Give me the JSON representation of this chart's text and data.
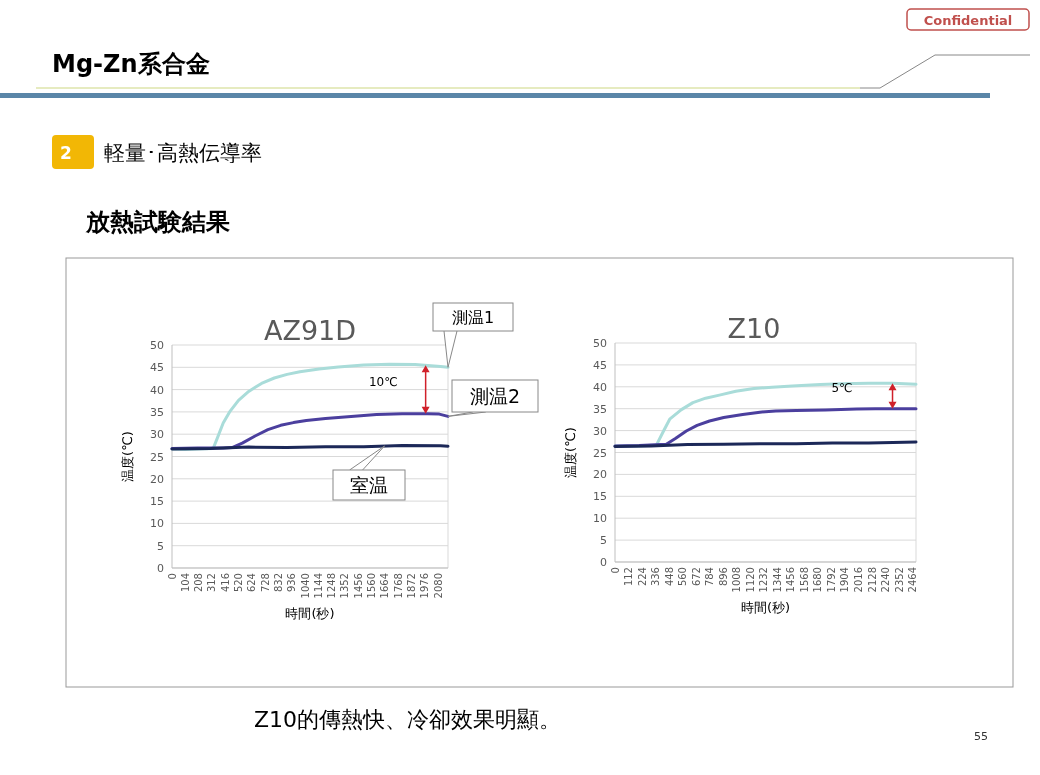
{
  "chart_data": [
    {
      "type": "line",
      "title": "AZ91D",
      "xlabel": "時間(秒)",
      "ylabel": "温度(℃)",
      "xlim": [
        0,
        2158
      ],
      "xticks": [
        0,
        104,
        208,
        312,
        416,
        520,
        624,
        728,
        832,
        936,
        1040,
        1144,
        1248,
        1352,
        1456,
        1560,
        1664,
        1768,
        1872,
        1976,
        2080
      ],
      "ylim": [
        0,
        50
      ],
      "yticks": [
        0,
        5,
        10,
        15,
        20,
        25,
        30,
        35,
        40,
        45,
        50
      ],
      "grid": "y",
      "annotations": [
        "Confidential",
        "Mg-Zn系合金",
        "2",
        "軽量･高熱伝導率",
        "放熱試験結果",
        "10℃"
      ],
      "series": [
        {
          "name": "測温1",
          "color": "#a9dcd9",
          "x": [
            0,
            104,
            208,
            322,
            360,
            400,
            450,
            520,
            600,
            700,
            800,
            900,
            1000,
            1150,
            1300,
            1500,
            1700,
            1900,
            2000,
            2100,
            2158
          ],
          "values": [
            26.7,
            26.6,
            26.7,
            26.8,
            29.5,
            32.5,
            35,
            37.6,
            39.6,
            41.4,
            42.6,
            43.4,
            44,
            44.6,
            45.1,
            45.5,
            45.7,
            45.6,
            45.4,
            45.2,
            45
          ]
        },
        {
          "name": "測温2",
          "color": "#4b3f9e",
          "x": [
            0,
            200,
            400,
            470,
            550,
            650,
            750,
            850,
            950,
            1050,
            1200,
            1400,
            1600,
            1800,
            2000,
            2090,
            2158
          ],
          "values": [
            26.8,
            26.9,
            26.9,
            27,
            28,
            29.6,
            31,
            32,
            32.6,
            33.1,
            33.5,
            34,
            34.4,
            34.6,
            34.6,
            34.5,
            34
          ]
        },
        {
          "name": "室温",
          "color": "#1c2858",
          "x": [
            0,
            300,
            600,
            900,
            1200,
            1500,
            1800,
            2100,
            2158
          ],
          "values": [
            26.7,
            26.8,
            27.1,
            27,
            27.2,
            27.2,
            27.5,
            27.4,
            27.3
          ]
        }
      ]
    },
    {
      "type": "line",
      "title": "Z10",
      "xlabel": "時間(秒)",
      "ylabel": "温度(℃)",
      "xlim": [
        0,
        2492
      ],
      "xticks": [
        0,
        112,
        224,
        336,
        448,
        560,
        672,
        784,
        896,
        1008,
        1120,
        1232,
        1344,
        1456,
        1568,
        1680,
        1792,
        1904,
        2016,
        2128,
        2240,
        2352,
        2464
      ],
      "ylim": [
        0,
        50
      ],
      "yticks": [
        0,
        5,
        10,
        15,
        20,
        25,
        30,
        35,
        40,
        45,
        50
      ],
      "grid": "y",
      "annotations": [
        "5℃",
        "Z10的傳熱快、冷卻效果明顯。",
        "55"
      ],
      "series": [
        {
          "color": "#a9dcd9",
          "x": [
            0,
            200,
            343,
            400,
            453,
            550,
            645,
            750,
            864,
            1000,
            1150,
            1300,
            1468,
            1700,
            1880,
            2100,
            2300,
            2492
          ],
          "values": [
            26.5,
            26.5,
            26.7,
            29.8,
            32.6,
            34.8,
            36.4,
            37.4,
            38.1,
            39,
            39.6,
            39.9,
            40.2,
            40.5,
            40.7,
            40.8,
            40.8,
            40.6
          ]
        },
        {
          "color": "#4b3f9e",
          "x": [
            0,
            200,
            425,
            500,
            590,
            680,
            782,
            900,
            1057,
            1200,
            1331,
            1500,
            1743,
            2000,
            2154,
            2492
          ],
          "values": [
            26.5,
            26.6,
            26.9,
            28.2,
            29.9,
            31.2,
            32.2,
            33,
            33.7,
            34.2,
            34.5,
            34.6,
            34.7,
            34.9,
            35,
            35
          ]
        },
        {
          "color": "#1c2858",
          "x": [
            0,
            300,
            600,
            900,
            1200,
            1500,
            1800,
            2100,
            2300,
            2492
          ],
          "values": [
            26.4,
            26.5,
            26.8,
            26.9,
            27,
            27,
            27.2,
            27.2,
            27.3,
            27.4
          ]
        }
      ]
    }
  ]
}
